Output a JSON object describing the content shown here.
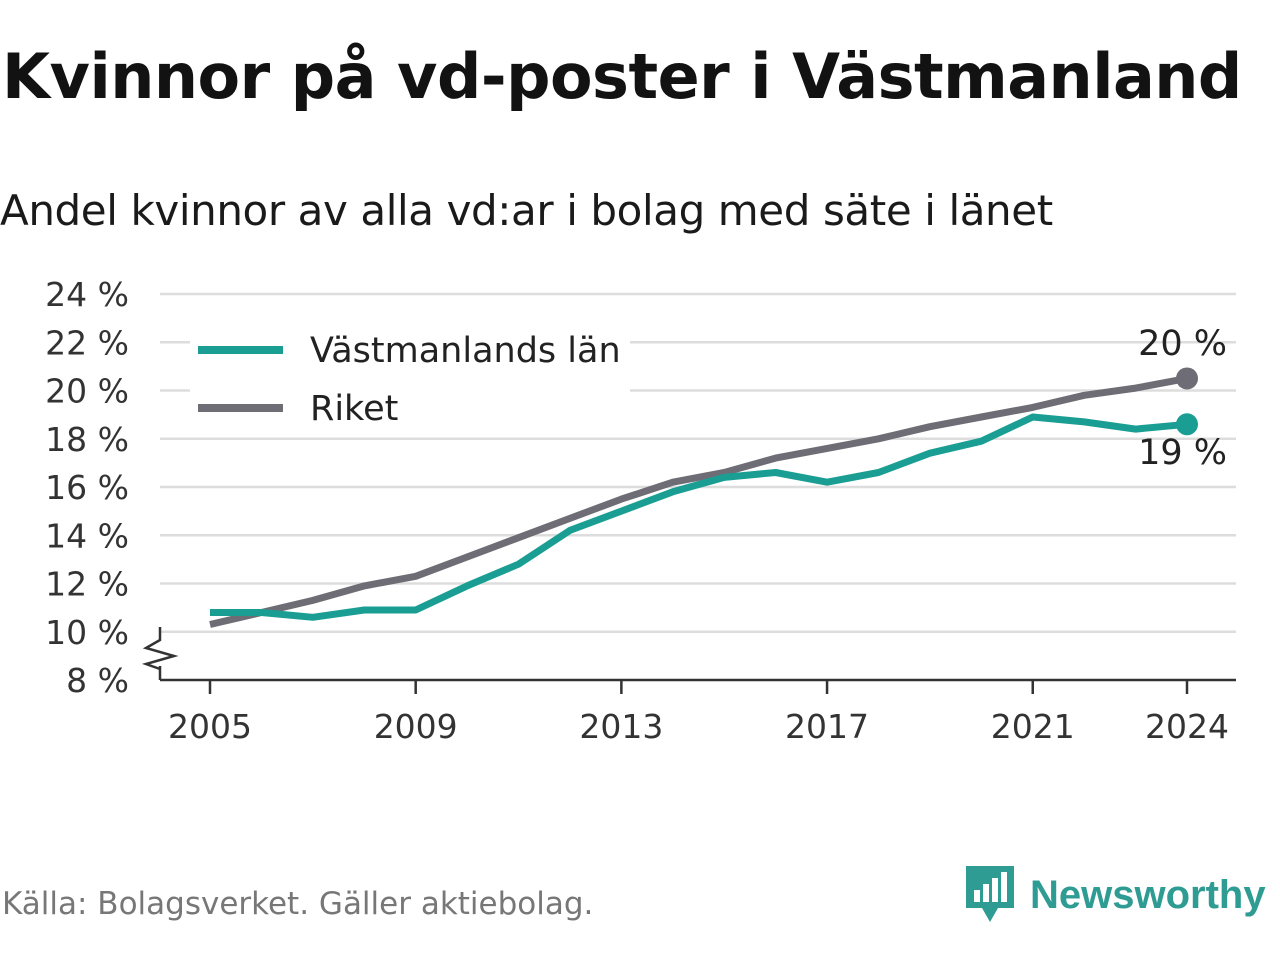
{
  "title": "Kvinnor på vd-poster i Västmanland",
  "subtitle": "Andel kvinnor av alla vd:ar i bolag med säte i länet",
  "source": "Källa: Bolagsverket. Gäller aktiebolag.",
  "logo_text": "Newsworthy",
  "colors": {
    "vastmanland": "#1a9e93",
    "riket": "#6e6d75",
    "grid": "#dddddd",
    "axis": "#333333",
    "logo": "#2f9c93"
  },
  "chart_data": {
    "type": "line",
    "x": [
      2005,
      2006,
      2007,
      2008,
      2009,
      2010,
      2011,
      2012,
      2013,
      2014,
      2015,
      2016,
      2017,
      2018,
      2019,
      2020,
      2021,
      2022,
      2023,
      2024
    ],
    "series": [
      {
        "name": "Västmanlands län",
        "values": [
          10.8,
          10.8,
          10.6,
          10.9,
          10.9,
          11.9,
          12.8,
          14.2,
          15.0,
          15.8,
          16.4,
          16.6,
          16.2,
          16.6,
          17.4,
          17.9,
          18.9,
          18.7,
          18.4,
          18.6
        ]
      },
      {
        "name": "Riket",
        "values": [
          10.3,
          10.8,
          11.3,
          11.9,
          12.3,
          13.1,
          13.9,
          14.7,
          15.5,
          16.2,
          16.6,
          17.2,
          17.6,
          18.0,
          18.5,
          18.9,
          19.3,
          19.8,
          20.1,
          20.5
        ]
      }
    ],
    "xlabel": "",
    "ylabel": "",
    "ylim": [
      8,
      24
    ],
    "y_ticks": [
      8,
      10,
      12,
      14,
      16,
      18,
      20,
      22,
      24
    ],
    "y_tick_labels": [
      "8 %",
      "10 %",
      "12 %",
      "14 %",
      "16 %",
      "18 %",
      "20 %",
      "22 %",
      "24 %"
    ],
    "x_ticks": [
      2005,
      2009,
      2013,
      2017,
      2021,
      2024
    ],
    "x_tick_labels": [
      "2005",
      "2009",
      "2013",
      "2017",
      "2021",
      "2024"
    ],
    "end_labels": {
      "Riket": "20 %",
      "Västmanlands län": "19 %"
    },
    "grid": true,
    "axis_break": true,
    "legend_position": "top-left"
  }
}
